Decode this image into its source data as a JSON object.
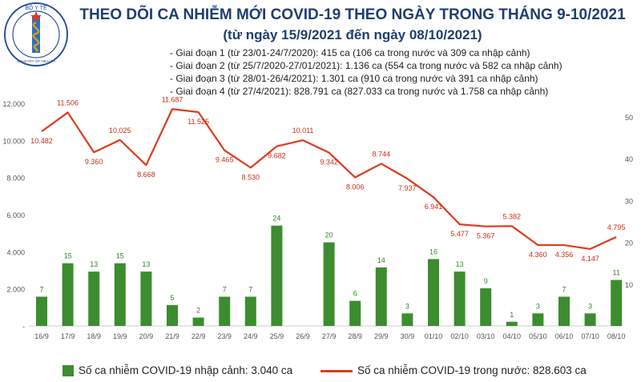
{
  "header": {
    "title": "THEO DÕI CA NHIỄM MỚI COVID-19 THEO NGÀY TRONG THÁNG 9-10/2021",
    "subtitle": "(từ ngày 15/9/2021 đến ngày 08/10/2021)",
    "notes": [
      "- Giai đoạn 1 (từ 23/01-24/7/2020): 415 ca (106 ca trong nước và 309 ca nhập cảnh)",
      "- Giai đoạn 2 (từ 25/7/2020-27/01/2021): 1.136 ca (554 ca trong nước và 582 ca nhập cảnh)",
      "- Giai đoạn 3 (từ 28/01-26/4/2021): 1.301 ca (910 ca trong nước và 391 ca nhập cảnh)",
      "- Giai đoạn 4 (từ 27/4/2021): 828.791 ca (827.033 ca trong nước và 1.758 ca nhập cảnh)"
    ]
  },
  "logo": {
    "text_top": "BỘ Y TẾ",
    "text_bottom": "MINISTRY OF HEALTH"
  },
  "colors": {
    "bar": "#3c8d2f",
    "line": "#e03a1e",
    "bar_label": "#2f8a24",
    "line_label": "#c62f16",
    "axis_text": "#555555",
    "title": "#1f3f6e"
  },
  "chart_data": {
    "type": "bar+line",
    "categories": [
      "16/9",
      "17/9",
      "18/9",
      "19/9",
      "20/9",
      "21/9",
      "22/9",
      "23/9",
      "24/9",
      "25/9",
      "26/9",
      "27/9",
      "28/9",
      "29/9",
      "30/9",
      "01/10",
      "02/10",
      "03/10",
      "04/10",
      "05/10",
      "06/10",
      "07/10",
      "08/10"
    ],
    "series": [
      {
        "name": "Số ca nhiễm COVID-19 nhập cảnh: 3.040 ca",
        "type": "bar",
        "axis": "right",
        "values": [
          7,
          15,
          13,
          15,
          13,
          5,
          2,
          7,
          7,
          24,
          null,
          20,
          6,
          14,
          3,
          16,
          13,
          9,
          1,
          3,
          7,
          3,
          11
        ],
        "labels": [
          "7",
          "15",
          "13",
          "15",
          "13",
          "5",
          "2",
          "7",
          "7",
          "24",
          "",
          "20",
          "6",
          "14",
          "3",
          "16",
          "13",
          "9",
          "1",
          "3",
          "7",
          "3",
          "11"
        ]
      },
      {
        "name": "Số ca nhiễm COVID-19 trong nước: 828.603 ca",
        "type": "line",
        "axis": "left",
        "values": [
          10482,
          11506,
          9360,
          10025,
          8668,
          11687,
          11525,
          9465,
          8530,
          9682,
          10011,
          9342,
          8006,
          8744,
          7937,
          6941,
          5477,
          5367,
          5382,
          4360,
          4356,
          4147,
          4795
        ],
        "labels": [
          "10.482",
          "11.506",
          "9.360",
          "10.025",
          "8.668",
          "11.687",
          "11.525",
          "9.465",
          "8.530",
          "9.682",
          "10.011",
          "9.342",
          "8.006",
          "8.744",
          "7.937",
          "6.941",
          "5.477",
          "5.367",
          "5.382",
          "4.360",
          "4.356",
          "4.147",
          "4.795"
        ]
      }
    ],
    "left_axis": {
      "ylim": [
        0,
        12000
      ],
      "ticks": [
        "-",
        "2.000",
        "4.000",
        "6.000",
        "8.000",
        "10.000",
        "12.000"
      ]
    },
    "right_axis": {
      "ylim": [
        0,
        55
      ],
      "ticks": [
        "10",
        "20",
        "30",
        "40",
        "50"
      ]
    },
    "legend_position": "bottom"
  }
}
